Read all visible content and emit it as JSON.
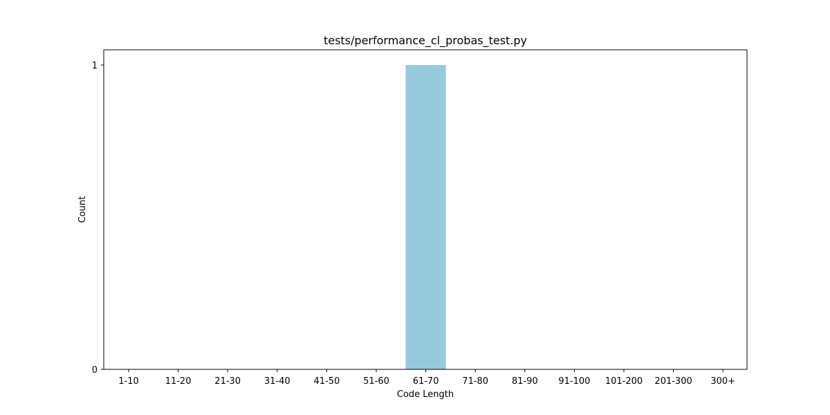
{
  "chart_data": {
    "type": "bar",
    "title": "tests/performance_cl_probas_test.py",
    "xlabel": "Code Length",
    "ylabel": "Count",
    "categories": [
      "1-10",
      "11-20",
      "21-30",
      "31-40",
      "41-50",
      "51-60",
      "61-70",
      "71-80",
      "81-90",
      "91-100",
      "101-200",
      "201-300",
      "300+"
    ],
    "values": [
      0,
      0,
      0,
      0,
      0,
      0,
      1,
      0,
      0,
      0,
      0,
      0,
      0
    ],
    "ylim": [
      0,
      1.05
    ],
    "yticks": [
      0,
      1
    ],
    "grid": false,
    "bar_color": "#96c9dc"
  }
}
